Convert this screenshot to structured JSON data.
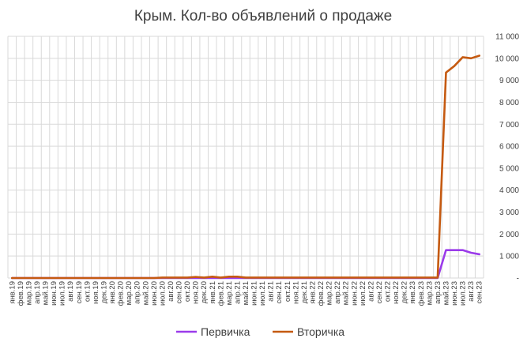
{
  "colors": {
    "primary": "#9B3BEA",
    "secondary": "#C55A11",
    "grid": "#D9D9D9",
    "text": "#404040"
  },
  "chart_data": {
    "type": "line",
    "title": "Крым. Кол-во объявлений о продаже",
    "xlabel": "",
    "ylabel": "",
    "y_axis_position": "right",
    "ylim": [
      0,
      11000
    ],
    "y_ticks": [
      {
        "value": 0,
        "label": "-"
      },
      {
        "value": 1000,
        "label": "1 000"
      },
      {
        "value": 2000,
        "label": "2 000"
      },
      {
        "value": 3000,
        "label": "3 000"
      },
      {
        "value": 4000,
        "label": "4 000"
      },
      {
        "value": 5000,
        "label": "5 000"
      },
      {
        "value": 6000,
        "label": "6 000"
      },
      {
        "value": 7000,
        "label": "7 000"
      },
      {
        "value": 8000,
        "label": "8 000"
      },
      {
        "value": 9000,
        "label": "9 000"
      },
      {
        "value": 10000,
        "label": "10 000"
      },
      {
        "value": 11000,
        "label": "11 000"
      }
    ],
    "grid": true,
    "legend_position": "bottom",
    "categories": [
      "янв.19",
      "фев.19",
      "мар.19",
      "апр.19",
      "май.19",
      "июн.19",
      "июл.19",
      "авг.19",
      "сен.19",
      "окт.19",
      "ноя.19",
      "дек.19",
      "янв.20",
      "фев.20",
      "мар.20",
      "апр.20",
      "май.20",
      "июн.20",
      "июл.20",
      "авг.20",
      "сен.20",
      "окт.20",
      "ноя.20",
      "дек.20",
      "янв.21",
      "фев.21",
      "мар.21",
      "апр.21",
      "май.21",
      "июн.21",
      "июл.21",
      "авг.21",
      "сен.21",
      "окт.21",
      "ноя.21",
      "дек.21",
      "янв.22",
      "фев.22",
      "мар.22",
      "апр.22",
      "май.22",
      "июн.22",
      "июл.22",
      "авг.22",
      "сен.22",
      "окт.22",
      "ноя.22",
      "дек.22",
      "янв.23",
      "фев.23",
      "мар.23",
      "апр.23",
      "май.23",
      "июн.23",
      "июл.23",
      "авг.23",
      "сен.23"
    ],
    "series": [
      {
        "name": "Первичка",
        "color": "#9B3BEA",
        "values": [
          0,
          0,
          0,
          0,
          0,
          0,
          0,
          0,
          0,
          0,
          0,
          0,
          0,
          0,
          0,
          0,
          0,
          0,
          0,
          0,
          0,
          0,
          0,
          0,
          0,
          0,
          0,
          0,
          0,
          0,
          0,
          0,
          0,
          0,
          0,
          0,
          0,
          0,
          0,
          0,
          0,
          0,
          0,
          0,
          0,
          0,
          0,
          0,
          0,
          0,
          0,
          0,
          1270,
          1270,
          1270,
          1150,
          1080
        ]
      },
      {
        "name": "Вторичка",
        "color": "#C55A11",
        "values": [
          0,
          0,
          0,
          0,
          0,
          0,
          0,
          0,
          0,
          0,
          0,
          0,
          0,
          0,
          0,
          0,
          0,
          0,
          20,
          20,
          20,
          20,
          50,
          20,
          60,
          20,
          60,
          60,
          20,
          20,
          20,
          20,
          20,
          20,
          20,
          20,
          20,
          20,
          20,
          20,
          20,
          20,
          20,
          20,
          20,
          20,
          20,
          20,
          20,
          20,
          20,
          20,
          9350,
          9650,
          10050,
          10000,
          10120
        ]
      }
    ]
  }
}
